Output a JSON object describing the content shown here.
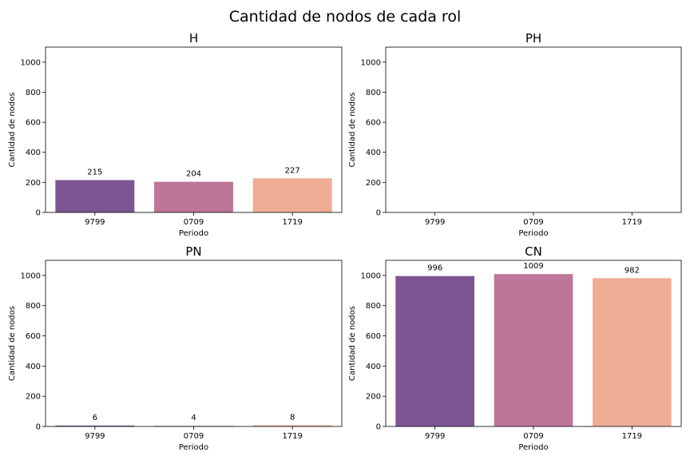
{
  "title": "Cantidad de nodos de cada rol",
  "colors": [
    "#7c5592",
    "#bd7598",
    "#eeac95"
  ],
  "chart_data": [
    {
      "type": "bar",
      "title": "H",
      "categories": [
        "9799",
        "0709",
        "1719"
      ],
      "values": [
        215,
        204,
        227
      ],
      "data_labels": [
        "215",
        "204",
        "227"
      ],
      "xlabel": "Periodo",
      "ylabel": "Cantidad de nodos",
      "ylim": [
        0,
        1100
      ],
      "yticks": [
        0,
        200,
        400,
        600,
        800,
        1000
      ]
    },
    {
      "type": "bar",
      "title": "PH",
      "categories": [
        "9799",
        "0709",
        "1719"
      ],
      "values": [
        0,
        0,
        0
      ],
      "data_labels": [
        "",
        "",
        ""
      ],
      "xlabel": "Periodo",
      "ylabel": "Cantidad de nodos",
      "ylim": [
        0,
        1100
      ],
      "yticks": [
        0,
        200,
        400,
        600,
        800,
        1000
      ]
    },
    {
      "type": "bar",
      "title": "PN",
      "categories": [
        "9799",
        "0709",
        "1719"
      ],
      "values": [
        6,
        4,
        8
      ],
      "data_labels": [
        "6",
        "4",
        "8"
      ],
      "xlabel": "Periodo",
      "ylabel": "Cantidad de nodos",
      "ylim": [
        0,
        1100
      ],
      "yticks": [
        0,
        200,
        400,
        600,
        800,
        1000
      ]
    },
    {
      "type": "bar",
      "title": "CN",
      "categories": [
        "9799",
        "0709",
        "1719"
      ],
      "values": [
        996,
        1009,
        982
      ],
      "data_labels": [
        "996",
        "1009",
        "982"
      ],
      "xlabel": "Periodo",
      "ylabel": "Cantidad de nodos",
      "ylim": [
        0,
        1100
      ],
      "yticks": [
        0,
        200,
        400,
        600,
        800,
        1000
      ]
    }
  ]
}
